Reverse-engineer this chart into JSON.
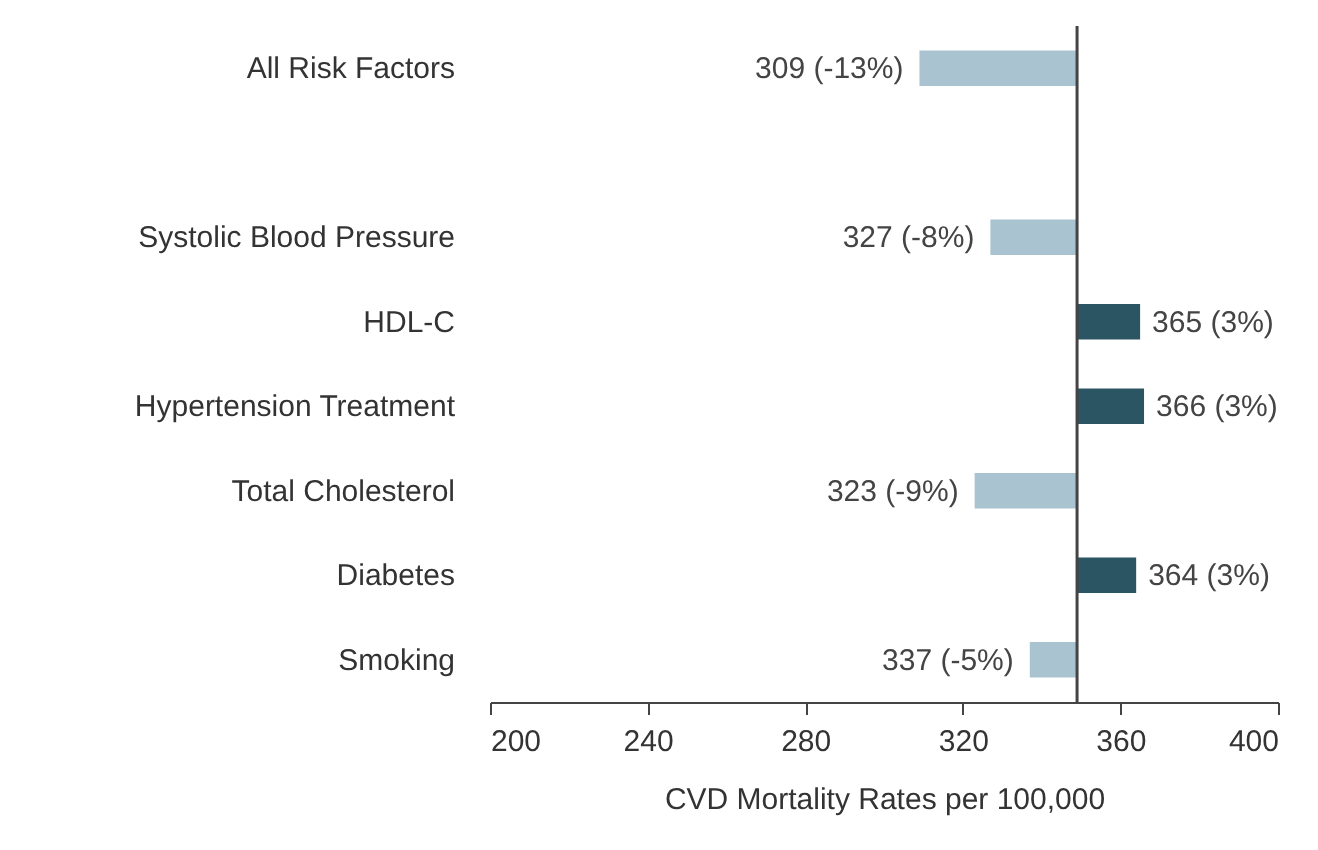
{
  "chart_data": {
    "type": "bar",
    "orientation": "horizontal",
    "categories": [
      "All Risk Factors",
      null,
      "Systolic Blood Pressure",
      "HDL-C",
      "Hypertension Treatment",
      "Total Cholesterol",
      "Diabetes",
      "Smoking"
    ],
    "base": [
      349,
      null,
      349,
      349,
      349,
      349,
      349,
      349
    ],
    "values": [
      -40,
      null,
      -22,
      16,
      17,
      -26,
      15,
      -12
    ],
    "colors": [
      "#a9c4d0",
      null,
      "#a9c4d0",
      "#2b5563",
      "#2b5563",
      "#a9c4d0",
      "#2b5563",
      "#a9c4d0"
    ],
    "annotations": [
      {
        "text": "309 (-13%)",
        "x": 309,
        "y": "All Risk Factors"
      },
      {
        "text": "327 (-8%)",
        "x": 327,
        "y": "Systolic Blood Pressure"
      },
      {
        "text": "365 (3%)",
        "x": 365,
        "y": "HDL-C"
      },
      {
        "text": "366 (3%)",
        "x": 366,
        "y": "Hypertension Treatment"
      },
      {
        "text": "323 (-9%)",
        "x": 323,
        "y": "Total Cholesterol"
      },
      {
        "text": "364 (3%)",
        "x": 364,
        "y": "Diabetes"
      },
      {
        "text": "337 (-5%)",
        "x": 337,
        "y": "Smoking"
      }
    ],
    "xlabel": "CVD Mortality Rates per 100,000",
    "xlim": [
      200,
      400
    ],
    "xticks": [
      200,
      240,
      280,
      320,
      360,
      400
    ],
    "ref_lines": [
      {
        "axis": "x",
        "value": 349,
        "color": "#444444"
      }
    ],
    "grid": false
  }
}
